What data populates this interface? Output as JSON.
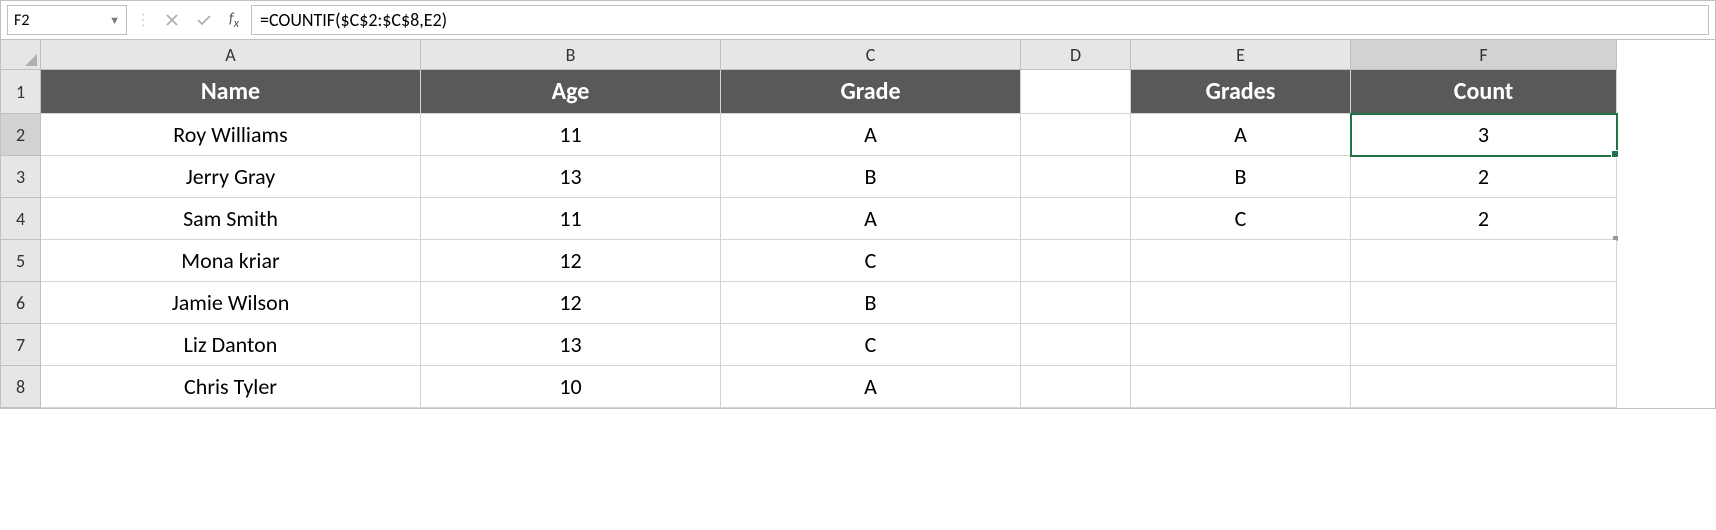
{
  "formula_bar": {
    "cell_ref": "F2",
    "formula": "=COUNTIF($C$2:$C$8,E2)"
  },
  "columns": {
    "row_header_width": 40,
    "widths": [
      380,
      300,
      300,
      110,
      220,
      266
    ],
    "labels": [
      "A",
      "B",
      "C",
      "D",
      "E",
      "F"
    ]
  },
  "active": {
    "col": "F",
    "row": 2
  },
  "rows": [
    {
      "num": 1,
      "cells": [
        {
          "v": "Name",
          "hdr": true
        },
        {
          "v": "Age",
          "hdr": true
        },
        {
          "v": "Grade",
          "hdr": true
        },
        {
          "v": ""
        },
        {
          "v": "Grades",
          "hdr": true
        },
        {
          "v": "Count",
          "hdr": true
        }
      ]
    },
    {
      "num": 2,
      "cells": [
        {
          "v": "Roy Williams"
        },
        {
          "v": "11"
        },
        {
          "v": "A"
        },
        {
          "v": ""
        },
        {
          "v": "A"
        },
        {
          "v": "3",
          "selected": true
        }
      ]
    },
    {
      "num": 3,
      "cells": [
        {
          "v": "Jerry Gray"
        },
        {
          "v": "13"
        },
        {
          "v": "B"
        },
        {
          "v": ""
        },
        {
          "v": "B"
        },
        {
          "v": "2"
        }
      ]
    },
    {
      "num": 4,
      "cells": [
        {
          "v": "Sam Smith"
        },
        {
          "v": "11"
        },
        {
          "v": "A"
        },
        {
          "v": ""
        },
        {
          "v": "C"
        },
        {
          "v": "2",
          "filled_end": true
        }
      ]
    },
    {
      "num": 5,
      "cells": [
        {
          "v": "Mona kriar"
        },
        {
          "v": "12"
        },
        {
          "v": "C"
        },
        {
          "v": ""
        },
        {
          "v": ""
        },
        {
          "v": ""
        }
      ]
    },
    {
      "num": 6,
      "cells": [
        {
          "v": "Jamie Wilson"
        },
        {
          "v": "12"
        },
        {
          "v": "B"
        },
        {
          "v": ""
        },
        {
          "v": ""
        },
        {
          "v": ""
        }
      ]
    },
    {
      "num": 7,
      "cells": [
        {
          "v": "Liz Danton"
        },
        {
          "v": "13"
        },
        {
          "v": "C"
        },
        {
          "v": ""
        },
        {
          "v": ""
        },
        {
          "v": ""
        }
      ]
    },
    {
      "num": 8,
      "cells": [
        {
          "v": "Chris Tyler"
        },
        {
          "v": "10"
        },
        {
          "v": "A"
        },
        {
          "v": ""
        },
        {
          "v": ""
        },
        {
          "v": ""
        }
      ]
    }
  ],
  "colors": {
    "header_bg": "#595959",
    "header_fg": "#ffffff",
    "selection": "#217346",
    "gray_bg": "#e6e6e6",
    "grid_line": "#d4d4d4"
  }
}
